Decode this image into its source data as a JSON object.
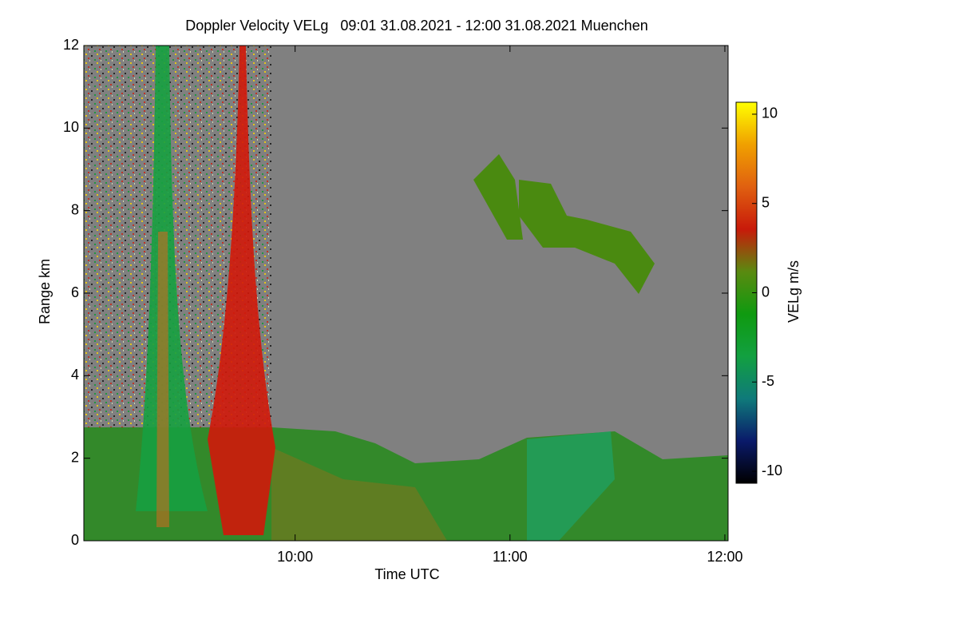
{
  "chart_data": {
    "type": "heatmap",
    "title": "Doppler Velocity VELg   09:01 31.08.2021 - 12:00 31.08.2021 Muenchen",
    "x_label": "Time UTC",
    "y_label": "Range km",
    "colorbar_label": "VELg m/s",
    "xlim": [
      9.0167,
      12.015
    ],
    "xticks": [
      {
        "value": 10,
        "label": "10:00"
      },
      {
        "value": 11,
        "label": "11:00"
      },
      {
        "value": 12,
        "label": "12:00"
      }
    ],
    "ylim": [
      0,
      12
    ],
    "yticks": [
      0,
      2,
      4,
      6,
      8,
      10,
      12
    ],
    "clim": [
      -10.67,
      10.67
    ],
    "cticks": [
      -10,
      -5,
      0,
      5,
      10
    ],
    "colormap": [
      "#000000",
      "#0a1a6a",
      "#0f7a7a",
      "#12a040",
      "#0f9a10",
      "#5a8a10",
      "#c81a0a",
      "#e06010",
      "#f0a000",
      "#ffff00"
    ],
    "background": "#808080"
  }
}
